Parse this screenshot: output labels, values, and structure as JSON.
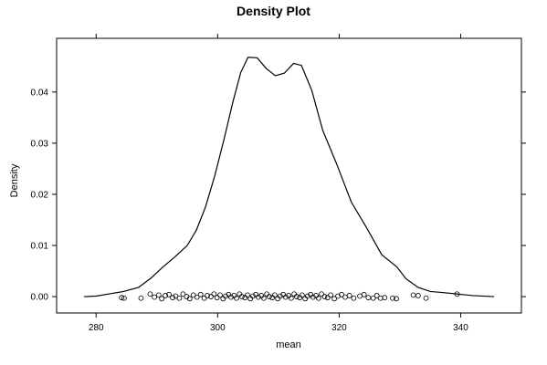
{
  "chart_data": {
    "type": "line",
    "title": "Density Plot",
    "xlabel": "mean",
    "ylabel": "Density",
    "xlim": [
      273.5,
      350
    ],
    "ylim": [
      -0.0032,
      0.0505
    ],
    "x_ticks": [
      280,
      300,
      320,
      340
    ],
    "y_ticks": [
      0.0,
      0.01,
      0.02,
      0.03,
      0.04
    ],
    "x_tick_labels": [
      "280",
      "300",
      "320",
      "340"
    ],
    "y_tick_labels": [
      "0.00",
      "0.01",
      "0.02",
      "0.03",
      "0.04"
    ],
    "grid": false,
    "legend": "none",
    "line_color": "#000000",
    "series": [
      {
        "type": "density-line",
        "x": [
          278.0,
          280.0,
          282.5,
          284.5,
          287.0,
          289.0,
          291.0,
          293.0,
          295.0,
          296.5,
          298.0,
          299.5,
          301.0,
          302.5,
          303.8,
          305.0,
          306.5,
          308.0,
          309.5,
          311.0,
          312.5,
          313.8,
          315.5,
          317.3,
          319.5,
          322.0,
          324.5,
          327.0,
          329.5,
          331.0,
          333.0,
          335.0,
          337.0,
          339.5,
          342.0,
          345.5
        ],
        "y": [
          0.0,
          0.0001,
          0.0006,
          0.001,
          0.0018,
          0.0036,
          0.0058,
          0.0078,
          0.01,
          0.013,
          0.0175,
          0.0235,
          0.0305,
          0.038,
          0.0438,
          0.0468,
          0.0467,
          0.0446,
          0.0432,
          0.0437,
          0.0456,
          0.0452,
          0.0403,
          0.0325,
          0.0262,
          0.0185,
          0.0135,
          0.0082,
          0.0058,
          0.0035,
          0.0018,
          0.001,
          0.0008,
          0.0005,
          0.0002,
          0.0
        ]
      },
      {
        "type": "rug-points",
        "marker": "open-circle",
        "jitter_y_range": [
          -0.0004,
          0.0006
        ],
        "x": [
          284.2,
          284.6,
          287.4,
          288.9,
          289.6,
          290.3,
          290.8,
          291.4,
          292.0,
          292.6,
          293.1,
          293.7,
          294.3,
          294.9,
          295.4,
          296.0,
          296.6,
          297.2,
          297.8,
          298.3,
          298.9,
          299.4,
          299.9,
          300.4,
          300.9,
          301.3,
          301.8,
          302.2,
          302.7,
          303.1,
          303.6,
          304.0,
          304.5,
          304.9,
          305.4,
          305.8,
          306.3,
          306.7,
          307.2,
          307.6,
          308.1,
          308.5,
          309.0,
          309.4,
          309.9,
          310.3,
          310.8,
          311.2,
          311.7,
          312.1,
          312.6,
          313.0,
          313.5,
          313.9,
          314.4,
          314.8,
          315.3,
          315.7,
          316.2,
          316.6,
          317.1,
          317.6,
          318.1,
          318.6,
          319.2,
          319.8,
          320.4,
          321.0,
          321.7,
          322.4,
          323.4,
          324.1,
          324.8,
          325.6,
          326.2,
          326.8,
          327.5,
          328.8,
          329.4,
          332.2,
          333.0,
          334.3,
          339.4
        ],
        "y": [
          -0.0002,
          -0.0003,
          -0.0003,
          0.0005,
          -0.0001,
          0.0003,
          -0.0004,
          0.0002,
          0.0004,
          -0.0002,
          0.0001,
          -0.0003,
          0.0005,
          0.0,
          -0.0004,
          0.0003,
          -0.0001,
          0.0004,
          -0.0003,
          0.0002,
          0.0,
          0.0005,
          -0.0002,
          0.0003,
          -0.0004,
          0.0001,
          0.0004,
          -0.0001,
          0.0002,
          -0.0003,
          0.0005,
          0.0,
          -0.0002,
          0.0003,
          -0.0004,
          0.0001,
          0.0004,
          -0.0001,
          0.0002,
          -0.0003,
          0.0005,
          0.0,
          -0.0002,
          0.0003,
          -0.0004,
          0.0001,
          0.0004,
          -0.0001,
          0.0002,
          -0.0003,
          0.0005,
          0.0,
          -0.0002,
          0.0003,
          -0.0004,
          0.0001,
          0.0004,
          -0.0001,
          0.0002,
          -0.0003,
          0.0005,
          0.0,
          -0.0002,
          0.0003,
          -0.0004,
          0.0001,
          0.0004,
          -0.0001,
          0.0002,
          -0.0003,
          0.0001,
          0.0004,
          -0.0002,
          -0.0003,
          0.0002,
          -0.0003,
          -0.0002,
          -0.0003,
          -0.0004,
          0.0003,
          0.0002,
          -0.0003,
          0.0005
        ]
      }
    ]
  }
}
